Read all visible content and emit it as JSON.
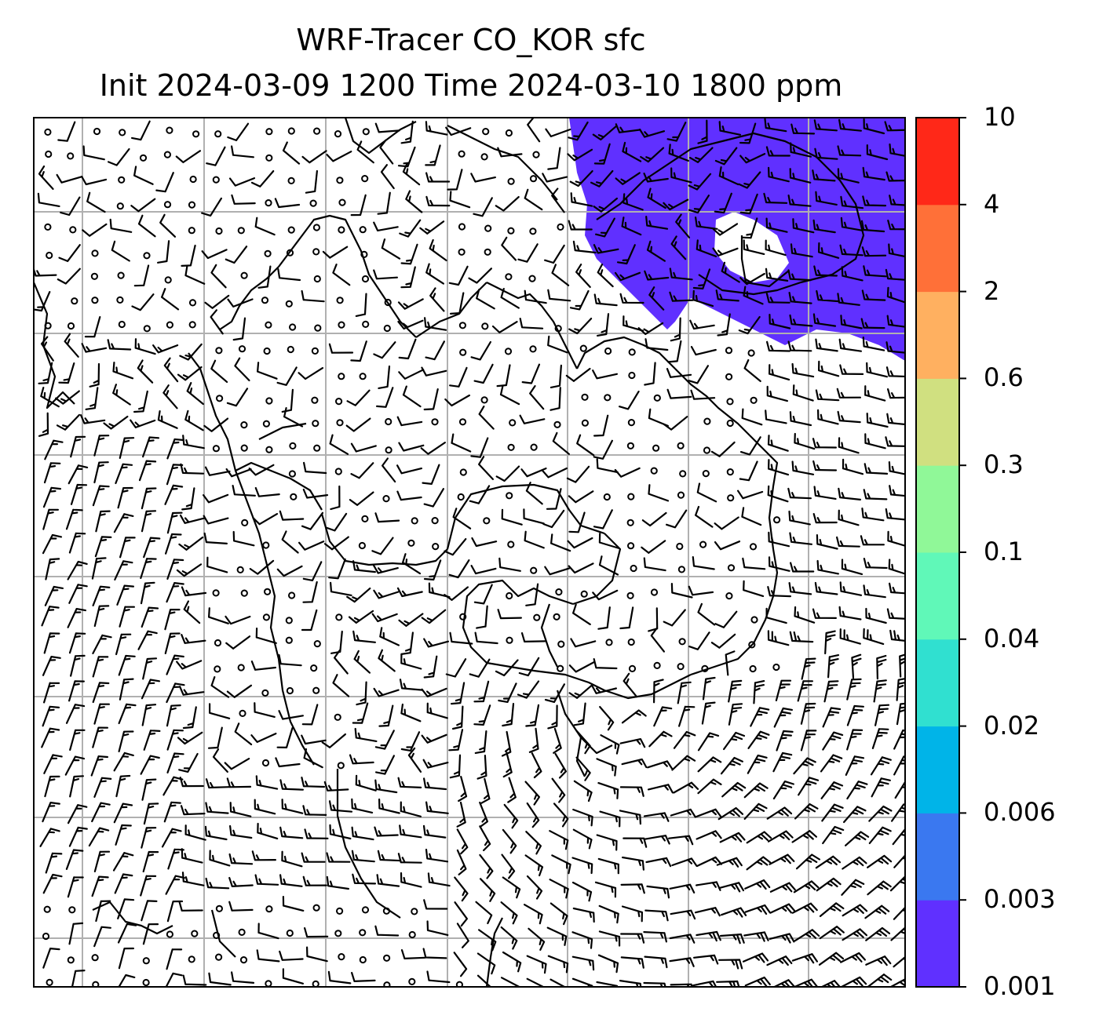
{
  "title_line1": "WRF-Tracer CO_KOR sfc",
  "title_line2": "Init 2024-03-09 1200 Time 2024-03-10 1800 ppm",
  "colorbar": {
    "levels": [
      "0.001",
      "0.003",
      "0.006",
      "0.02",
      "0.04",
      "0.1",
      "0.3",
      "0.6",
      "2",
      "4",
      "10"
    ],
    "colors": [
      "#6030ff",
      "#3a78f0",
      "#00b4e8",
      "#30e0d0",
      "#60f8b8",
      "#90f898",
      "#d0e080",
      "#ffb060",
      "#ff7038",
      "#ff2818"
    ]
  },
  "colors": {
    "tracer_fill": "#6030ff",
    "grid": "#b0b0b0",
    "coast": "#000000",
    "barb": "#000000"
  }
}
